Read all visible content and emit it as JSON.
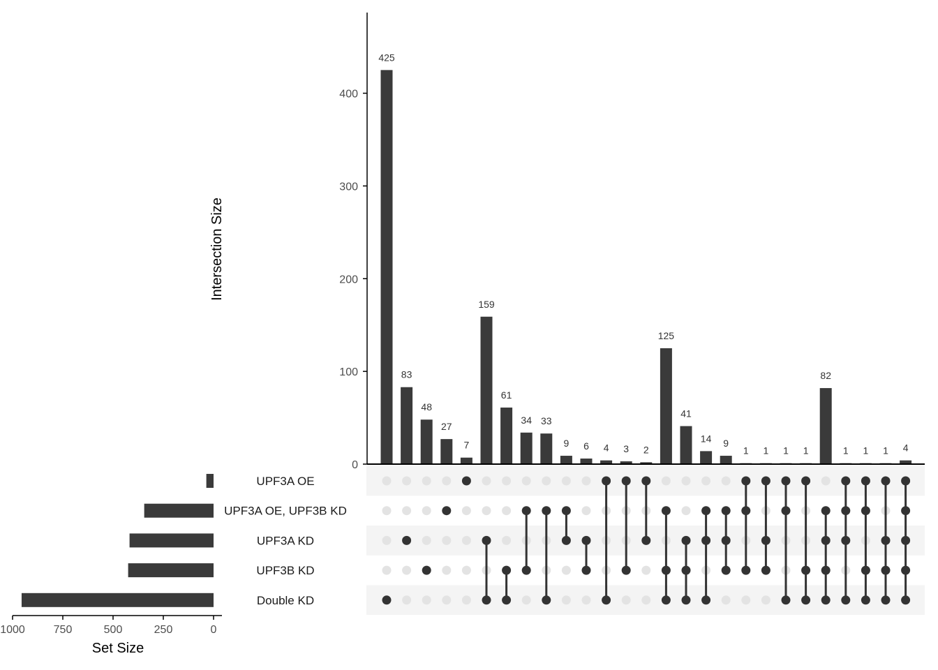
{
  "chart_data": {
    "type": "upset",
    "intersection_axis": {
      "title": "Intersection Size",
      "ticks": [
        0,
        100,
        200,
        300,
        400
      ],
      "range": [
        0,
        487
      ]
    },
    "set_size_axis": {
      "title": "Set Size",
      "ticks": [
        1000,
        750,
        500,
        250,
        0
      ],
      "range": [
        1000,
        0
      ]
    },
    "sets": [
      {
        "name": "UPF3A OE",
        "size": 36
      },
      {
        "name": "UPF3A OE, UPF3B KD",
        "size": 345
      },
      {
        "name": "UPF3A KD",
        "size": 418
      },
      {
        "name": "UPF3B KD",
        "size": 425
      },
      {
        "name": "Double KD",
        "size": 955
      }
    ],
    "intersections": [
      {
        "value": 425,
        "label": "425",
        "sets": [
          4
        ]
      },
      {
        "value": 83,
        "label": "83",
        "sets": [
          2
        ]
      },
      {
        "value": 48,
        "label": "48",
        "sets": [
          3
        ]
      },
      {
        "value": 27,
        "label": "27",
        "sets": [
          1
        ]
      },
      {
        "value": 7,
        "label": "7",
        "sets": [
          0
        ]
      },
      {
        "value": 159,
        "label": "159",
        "sets": [
          2,
          4
        ]
      },
      {
        "value": 61,
        "label": "61",
        "sets": [
          3,
          4
        ]
      },
      {
        "value": 34,
        "label": "34",
        "sets": [
          1,
          3
        ]
      },
      {
        "value": 33,
        "label": "33",
        "sets": [
          1,
          4
        ]
      },
      {
        "value": 9,
        "label": "9",
        "sets": [
          1,
          2
        ]
      },
      {
        "value": 6,
        "label": "6",
        "sets": [
          2,
          3
        ]
      },
      {
        "value": 4,
        "label": "4",
        "sets": [
          0,
          4
        ]
      },
      {
        "value": 3,
        "label": "3",
        "sets": [
          0,
          3
        ]
      },
      {
        "value": 2,
        "label": "2",
        "sets": [
          0,
          2
        ]
      },
      {
        "value": 125,
        "label": "125",
        "sets": [
          1,
          3,
          4
        ]
      },
      {
        "value": 41,
        "label": "41",
        "sets": [
          2,
          3,
          4
        ]
      },
      {
        "value": 14,
        "label": "14",
        "sets": [
          1,
          2,
          4
        ]
      },
      {
        "value": 9,
        "label": "9",
        "sets": [
          1,
          2,
          3
        ]
      },
      {
        "value": 1,
        "label": "1",
        "sets": [
          0,
          1,
          3
        ]
      },
      {
        "value": 1,
        "label": "1",
        "sets": [
          0,
          2,
          3
        ]
      },
      {
        "value": 1,
        "label": "1",
        "sets": [
          0,
          1,
          4
        ]
      },
      {
        "value": 1,
        "label": "1",
        "sets": [
          0,
          3,
          4
        ]
      },
      {
        "value": 82,
        "label": "82",
        "sets": [
          1,
          2,
          3,
          4
        ]
      },
      {
        "value": 1,
        "label": "1",
        "sets": [
          0,
          1,
          2,
          4
        ]
      },
      {
        "value": 1,
        "label": "1",
        "sets": [
          0,
          1,
          3,
          4
        ]
      },
      {
        "value": 1,
        "label": "1",
        "sets": [
          0,
          2,
          3,
          4
        ]
      },
      {
        "value": 4,
        "label": "4",
        "sets": [
          0,
          1,
          2,
          3,
          4
        ]
      }
    ],
    "colors": {
      "bar": "#3a3a3a",
      "dot_active": "#333333",
      "dot_inactive": "#e3e3e3",
      "stripe": "#f4f4f4",
      "axis": "#000000"
    }
  }
}
